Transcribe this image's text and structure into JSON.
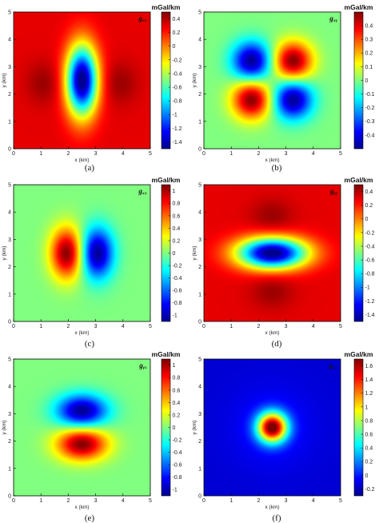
{
  "chart_data": [
    {
      "type": "heatmap",
      "panel_label": "(a)",
      "component_label": "gₓₓ",
      "colorbar_title": "mGal/km",
      "xlabel": "x (km)",
      "ylabel": "y (km)",
      "xlim": [
        0,
        5
      ],
      "ylim": [
        0,
        5
      ],
      "x_ticks": [
        "0",
        "1",
        "2",
        "3",
        "4",
        "5"
      ],
      "y_ticks": [
        "0",
        "1",
        "2",
        "3",
        "4",
        "5"
      ],
      "colorbar_range": [
        -1.5,
        0.5
      ],
      "colorbar_ticks": [
        "0.4",
        "0.2",
        "0",
        "-0.2",
        "-0.4",
        "-0.6",
        "-0.8",
        "-1",
        "-1.2",
        "-1.4"
      ],
      "colorbar_tick_values": [
        0.4,
        0.2,
        0,
        -0.2,
        -0.4,
        -0.6,
        -0.8,
        -1,
        -1.2,
        -1.4
      ],
      "field": {
        "base": 0.3,
        "anomalies": [
          {
            "x": 2.5,
            "y": 2.5,
            "sx": 0.4,
            "sy": 0.9,
            "a": -1.85
          },
          {
            "x": 1.1,
            "y": 2.4,
            "sx": 0.45,
            "sy": 0.55,
            "a": 0.15
          },
          {
            "x": 3.9,
            "y": 2.4,
            "sx": 0.45,
            "sy": 0.55,
            "a": 0.15
          }
        ]
      }
    },
    {
      "type": "heatmap",
      "panel_label": "(b)",
      "component_label": "gₓᵧ",
      "colorbar_title": "mGal/km",
      "xlabel": "x (km)",
      "ylabel": "y (km)",
      "xlim": [
        0,
        5
      ],
      "ylim": [
        0,
        5
      ],
      "x_ticks": [
        "0",
        "1",
        "2",
        "3",
        "4",
        "5"
      ],
      "y_ticks": [
        "0",
        "1",
        "2",
        "3",
        "4",
        "5"
      ],
      "colorbar_range": [
        -0.5,
        0.5
      ],
      "colorbar_ticks": [
        "0.4",
        "0.3",
        "0.2",
        "0.1",
        "0",
        "-0.1",
        "-0.2",
        "-0.3",
        "-0.4"
      ],
      "colorbar_tick_values": [
        0.4,
        0.3,
        0.2,
        0.1,
        0,
        -0.1,
        -0.2,
        -0.3,
        -0.4
      ],
      "field": {
        "base": 0.0,
        "anomalies": [
          {
            "x": 1.75,
            "y": 3.2,
            "sx": 0.5,
            "sy": 0.5,
            "a": -0.5
          },
          {
            "x": 3.25,
            "y": 3.2,
            "sx": 0.5,
            "sy": 0.5,
            "a": 0.5
          },
          {
            "x": 1.75,
            "y": 1.8,
            "sx": 0.5,
            "sy": 0.5,
            "a": 0.5
          },
          {
            "x": 3.25,
            "y": 1.8,
            "sx": 0.5,
            "sy": 0.5,
            "a": -0.5
          }
        ]
      }
    },
    {
      "type": "heatmap",
      "panel_label": "(c)",
      "component_label": "gₓₓ",
      "colorbar_title": "mGal/km",
      "xlabel": "x (km)",
      "ylabel": "y (km)",
      "xlim": [
        0,
        5
      ],
      "ylim": [
        0,
        5
      ],
      "x_ticks": [
        "0",
        "1",
        "2",
        "3",
        "4",
        "5"
      ],
      "y_ticks": [
        "0",
        "1",
        "2",
        "3",
        "4",
        "5"
      ],
      "colorbar_range": [
        -1.1,
        1.1
      ],
      "colorbar_ticks": [
        "1",
        "0.8",
        "0.6",
        "0.4",
        "0.2",
        "0",
        "-0.2",
        "-0.4",
        "-0.6",
        "-0.8",
        "-1"
      ],
      "colorbar_tick_values": [
        1,
        0.8,
        0.6,
        0.4,
        0.2,
        0,
        -0.2,
        -0.4,
        -0.6,
        -0.8,
        -1
      ],
      "field": {
        "base": 0.0,
        "anomalies": [
          {
            "x": 1.95,
            "y": 2.5,
            "sx": 0.42,
            "sy": 0.65,
            "a": 1.1
          },
          {
            "x": 3.05,
            "y": 2.5,
            "sx": 0.42,
            "sy": 0.65,
            "a": -1.1
          }
        ]
      }
    },
    {
      "type": "heatmap",
      "panel_label": "(d)",
      "component_label": "gᵧᵧ",
      "colorbar_title": "mGal/km",
      "xlabel": "x (km)",
      "ylabel": "y (km)",
      "xlim": [
        0,
        5
      ],
      "ylim": [
        0,
        5
      ],
      "x_ticks": [
        "0",
        "1",
        "2",
        "3",
        "4",
        "5"
      ],
      "y_ticks": [
        "0",
        "1",
        "2",
        "3",
        "4",
        "5"
      ],
      "colorbar_range": [
        -1.5,
        0.5
      ],
      "colorbar_ticks": [
        "0.4",
        "0.2",
        "0",
        "-0.2",
        "-0.4",
        "-0.6",
        "-0.8",
        "-1",
        "-1.2",
        "-1.4"
      ],
      "colorbar_tick_values": [
        0.4,
        0.2,
        0,
        -0.2,
        -0.4,
        -0.6,
        -0.8,
        -1,
        -1.2,
        -1.4
      ],
      "field": {
        "base": 0.3,
        "anomalies": [
          {
            "x": 2.5,
            "y": 2.5,
            "sx": 0.9,
            "sy": 0.4,
            "a": -1.85
          },
          {
            "x": 2.5,
            "y": 3.85,
            "sx": 0.55,
            "sy": 0.45,
            "a": 0.15
          },
          {
            "x": 2.5,
            "y": 1.1,
            "sx": 0.55,
            "sy": 0.45,
            "a": 0.15
          }
        ]
      }
    },
    {
      "type": "heatmap",
      "panel_label": "(e)",
      "component_label": "gᵧₓ",
      "colorbar_title": "mGal/km",
      "xlabel": "x (km)",
      "ylabel": "y (km)",
      "xlim": [
        0,
        5
      ],
      "ylim": [
        0,
        5
      ],
      "x_ticks": [
        "0",
        "1",
        "2",
        "3",
        "4",
        "5"
      ],
      "y_ticks": [
        "0",
        "1",
        "2",
        "3",
        "4",
        "5"
      ],
      "colorbar_range": [
        -1.1,
        1.1
      ],
      "colorbar_ticks": [
        "1",
        "0.8",
        "0.6",
        "0.4",
        "0.2",
        "0",
        "-0.2",
        "-0.4",
        "-0.6",
        "-0.8",
        "-1"
      ],
      "colorbar_tick_values": [
        1,
        0.8,
        0.6,
        0.4,
        0.2,
        0,
        -0.2,
        -0.4,
        -0.6,
        -0.8,
        -1
      ],
      "field": {
        "base": 0.0,
        "anomalies": [
          {
            "x": 2.5,
            "y": 3.1,
            "sx": 0.65,
            "sy": 0.42,
            "a": -1.1
          },
          {
            "x": 2.5,
            "y": 1.9,
            "sx": 0.65,
            "sy": 0.42,
            "a": 1.1
          }
        ]
      }
    },
    {
      "type": "heatmap",
      "panel_label": "(f)",
      "component_label": "gₓₓ",
      "colorbar_title": "mGal/km",
      "xlabel": "x (km)",
      "ylabel": "y (km)",
      "xlim": [
        0,
        5
      ],
      "ylim": [
        0,
        5
      ],
      "x_ticks": [
        "0",
        "1",
        "2",
        "3",
        "4",
        "5"
      ],
      "y_ticks": [
        "0",
        "1",
        "2",
        "3",
        "4",
        "5"
      ],
      "colorbar_range": [
        -0.3,
        1.7
      ],
      "colorbar_ticks": [
        "1.6",
        "1.4",
        "1.2",
        "1",
        "0.8",
        "0.6",
        "0.4",
        "0.2",
        "0",
        "-0.2"
      ],
      "colorbar_tick_values": [
        1.6,
        1.4,
        1.2,
        1,
        0.8,
        0.6,
        0.4,
        0.2,
        0,
        -0.2
      ],
      "field": {
        "base": -0.15,
        "anomalies": [
          {
            "x": 2.5,
            "y": 2.5,
            "sx": 0.38,
            "sy": 0.38,
            "a": 1.85
          },
          {
            "x": 2.5,
            "y": 2.5,
            "sx": 1.1,
            "sy": 1.1,
            "a": 0.12
          }
        ]
      }
    }
  ],
  "colormap": [
    "#00008f",
    "#0000ff",
    "#0080ff",
    "#00ffff",
    "#80ff80",
    "#ffff00",
    "#ff8000",
    "#ff0000",
    "#800000"
  ]
}
